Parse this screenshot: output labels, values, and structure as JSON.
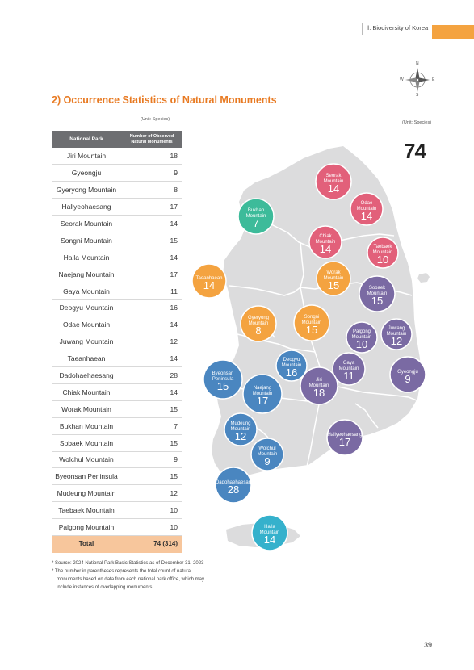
{
  "header": {
    "chapter": "Ⅰ. Biodiversity of Korea"
  },
  "compass": {
    "n": "N",
    "s": "S",
    "e": "E",
    "w": "W"
  },
  "section_title": "2) Occurrence Statistics of Natural Monuments",
  "unit_left": "(Unit: Species)",
  "unit_right": "(Unit: Species)",
  "total_big": "74",
  "table": {
    "col1": "National Park",
    "col2_line1": "Number of Observed",
    "col2_line2": "Natural Monuments",
    "rows": [
      {
        "name": "Jiri Mountain",
        "value": "18"
      },
      {
        "name": "Gyeongju",
        "value": "9"
      },
      {
        "name": "Gyeryong Mountain",
        "value": "8"
      },
      {
        "name": "Hallyeohaesang",
        "value": "17"
      },
      {
        "name": "Seorak Mountain",
        "value": "14"
      },
      {
        "name": "Songni Mountain",
        "value": "15"
      },
      {
        "name": "Halla Mountain",
        "value": "14"
      },
      {
        "name": "Naejang Mountain",
        "value": "17"
      },
      {
        "name": "Gaya Mountain",
        "value": "11"
      },
      {
        "name": "Deogyu Mountain",
        "value": "16"
      },
      {
        "name": "Odae Mountain",
        "value": "14"
      },
      {
        "name": "Juwang Mountain",
        "value": "12"
      },
      {
        "name": "Taeanhaean",
        "value": "14"
      },
      {
        "name": "Dadohaehaesang",
        "value": "28"
      },
      {
        "name": "Chiak Mountain",
        "value": "14"
      },
      {
        "name": "Worak Mountain",
        "value": "15"
      },
      {
        "name": "Bukhan Mountain",
        "value": "7"
      },
      {
        "name": "Sobaek Mountain",
        "value": "15"
      },
      {
        "name": "Wolchul Mountain",
        "value": "9"
      },
      {
        "name": "Byeonsan Peninsula",
        "value": "15"
      },
      {
        "name": "Mudeung Mountain",
        "value": "12"
      },
      {
        "name": "Taebaek Mountain",
        "value": "10"
      },
      {
        "name": "Palgong Mountain",
        "value": "10"
      }
    ],
    "total_label": "Total",
    "total_value": "74 (314)"
  },
  "footnotes": {
    "f1": "* Source: 2024 National Park Basic Statistics as of December 31, 2023",
    "f2a": "* The number in parentheses represents the total count of natural",
    "f2b": "monuments based on data from each national park office, which may",
    "f2c": "include instances of overlapping monuments."
  },
  "map_colors": {
    "land": "#dcdcdd",
    "pink": "#e2607a",
    "teal": "#3dbb9a",
    "orange": "#f4a340",
    "purple": "#7a6aa3",
    "blue": "#4a86c0",
    "cyan": "#35b1cc"
  },
  "bubbles": [
    {
      "line1": "Seorak",
      "line2": "Mountain",
      "value": "14",
      "color": "pink"
    },
    {
      "line1": "Odae",
      "line2": "Mountain",
      "value": "14",
      "color": "pink"
    },
    {
      "line1": "Bukhan",
      "line2": "Mountain",
      "value": "7",
      "color": "teal"
    },
    {
      "line1": "Chiak",
      "line2": "Mountain",
      "value": "14",
      "color": "pink"
    },
    {
      "line1": "Taebaek",
      "line2": "Mountain",
      "value": "10",
      "color": "pink"
    },
    {
      "line1": "Taeanhaean",
      "line2": "",
      "value": "14",
      "color": "orange"
    },
    {
      "line1": "Worak",
      "line2": "Mountain",
      "value": "15",
      "color": "orange"
    },
    {
      "line1": "Sobaek",
      "line2": "Mountain",
      "value": "15",
      "color": "purple"
    },
    {
      "line1": "Gyeryong",
      "line2": "Mountain",
      "value": "8",
      "color": "orange"
    },
    {
      "line1": "Songni",
      "line2": "Mountain",
      "value": "15",
      "color": "orange"
    },
    {
      "line1": "Palgong",
      "line2": "Mountain",
      "value": "10",
      "color": "purple"
    },
    {
      "line1": "Juwang",
      "line2": "Mountain",
      "value": "12",
      "color": "purple"
    },
    {
      "line1": "Deogyu",
      "line2": "Mountain",
      "value": "16",
      "color": "blue"
    },
    {
      "line1": "Gaya",
      "line2": "Mountain",
      "value": "11",
      "color": "purple"
    },
    {
      "line1": "Gyeongju",
      "line2": "",
      "value": "9",
      "color": "purple"
    },
    {
      "line1": "Byeonsan",
      "line2": "Peninsula",
      "value": "15",
      "color": "blue"
    },
    {
      "line1": "Jiri",
      "line2": "Mountain",
      "value": "18",
      "color": "purple"
    },
    {
      "line1": "Naejang",
      "line2": "Mountain",
      "value": "17",
      "color": "blue"
    },
    {
      "line1": "Mudeung",
      "line2": "Mountain",
      "value": "12",
      "color": "blue"
    },
    {
      "line1": "Hallyeohaesang",
      "line2": "",
      "value": "17",
      "color": "purple"
    },
    {
      "line1": "Wolchul",
      "line2": "Mountain",
      "value": "9",
      "color": "blue"
    },
    {
      "line1": "Dadohaehaesan",
      "line2": "",
      "value": "28",
      "color": "blue"
    },
    {
      "line1": "Halla",
      "line2": "Mountain",
      "value": "14",
      "color": "cyan"
    }
  ],
  "page_number": "39"
}
